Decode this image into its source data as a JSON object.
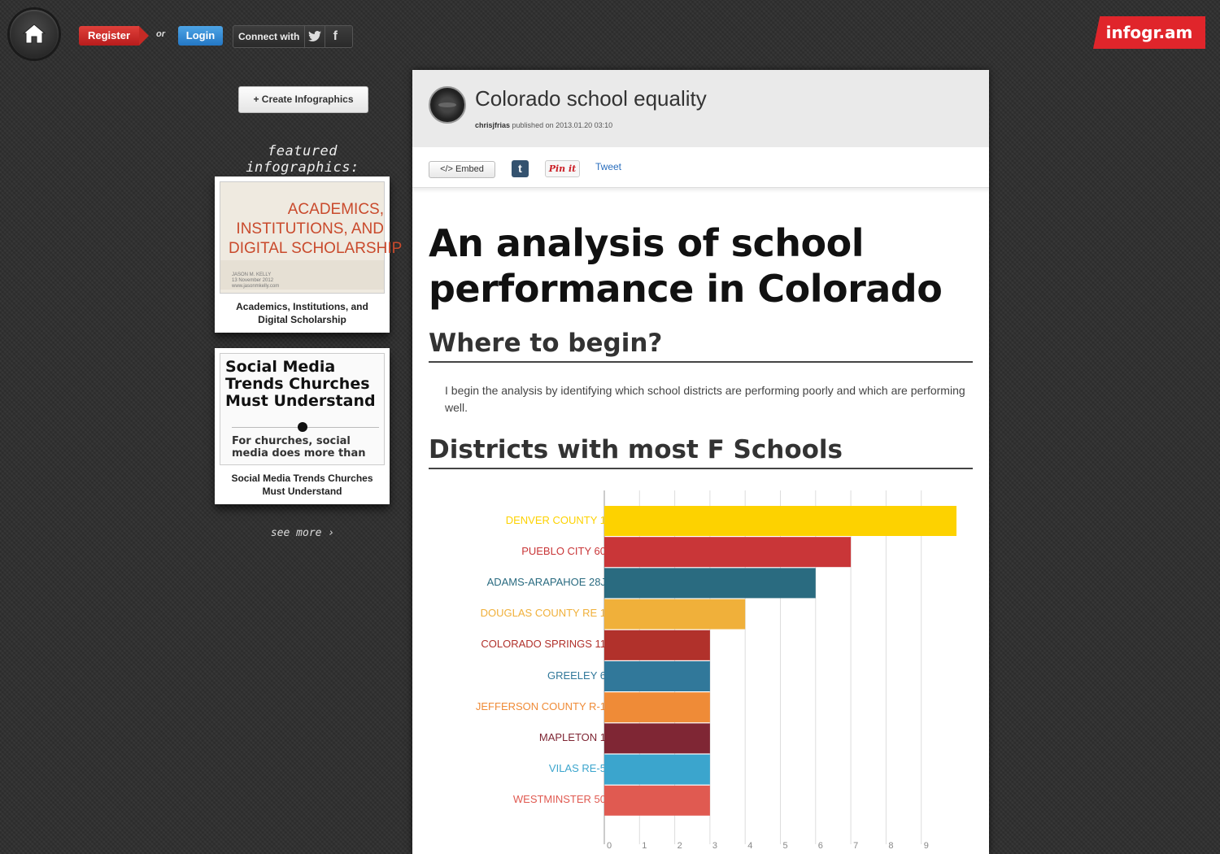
{
  "topbar": {
    "register_label": "Register",
    "or_label": "or",
    "login_label": "Login",
    "connect_label": "Connect with",
    "twitter_icon_glyph": "🐦",
    "facebook_icon_glyph": "f",
    "brand": "infogr.am",
    "brand_color": "#e0252b"
  },
  "sidebar": {
    "create_label": "+ Create Infographics",
    "featured_title": "featured infographics:",
    "cards": [
      {
        "thumb_title": "ACADEMICS,\nINSTITUTIONS, AND\nDIGITAL SCHOLARSHIP",
        "thumb_meta": "JASON M. KELLY\n13 November 2012\nwww.jasonmkelly.com",
        "caption": "Academics, Institutions, and Digital Scholarship"
      },
      {
        "thumb_title": "Social Media\nTrends Churches\nMust Understand",
        "thumb_sub": "For churches, social\nmedia does more than",
        "caption": "Social Media Trends Churches Must Understand"
      }
    ],
    "see_more": "see more ›"
  },
  "panel": {
    "title": "Colorado school equality",
    "author": "chrisjfrias",
    "published_text": "published on 2013.01.20 03:10",
    "embed_label": "</> Embed",
    "tumblr_label": "t",
    "pinit_label": "Pin it",
    "tweet_label": "Tweet",
    "heading": "An analysis of school performance in Colorado",
    "section1": "Where to begin?",
    "paragraph": "I begin the analysis by identifying which school districts are performing poorly and which are performing well.",
    "section2": "Districts with most F Schools"
  },
  "chart_data": {
    "type": "bar",
    "orientation": "horizontal",
    "title": "Districts with most F Schools",
    "categories": [
      "DENVER COUNTY 1",
      "PUEBLO CITY 60",
      "ADAMS-ARAPAHOE 28J",
      "DOUGLAS COUNTY RE 1",
      "COLORADO SPRINGS 11",
      "GREELEY 6",
      "JEFFERSON COUNTY R-1",
      "MAPLETON 1",
      "VILAS RE-5",
      "WESTMINSTER 50"
    ],
    "values": [
      10,
      7,
      6,
      4,
      3,
      3,
      3,
      3,
      3,
      3
    ],
    "colors": [
      "#fdd200",
      "#c93638",
      "#2a6b80",
      "#f0b03a",
      "#b1312b",
      "#31789a",
      "#ef8b37",
      "#7f2634",
      "#3ba5cd",
      "#e05a51"
    ],
    "xticks": [
      0,
      1,
      2,
      3,
      4,
      5,
      6,
      7,
      8,
      9
    ],
    "xlim": [
      0,
      10
    ],
    "grid": true
  }
}
